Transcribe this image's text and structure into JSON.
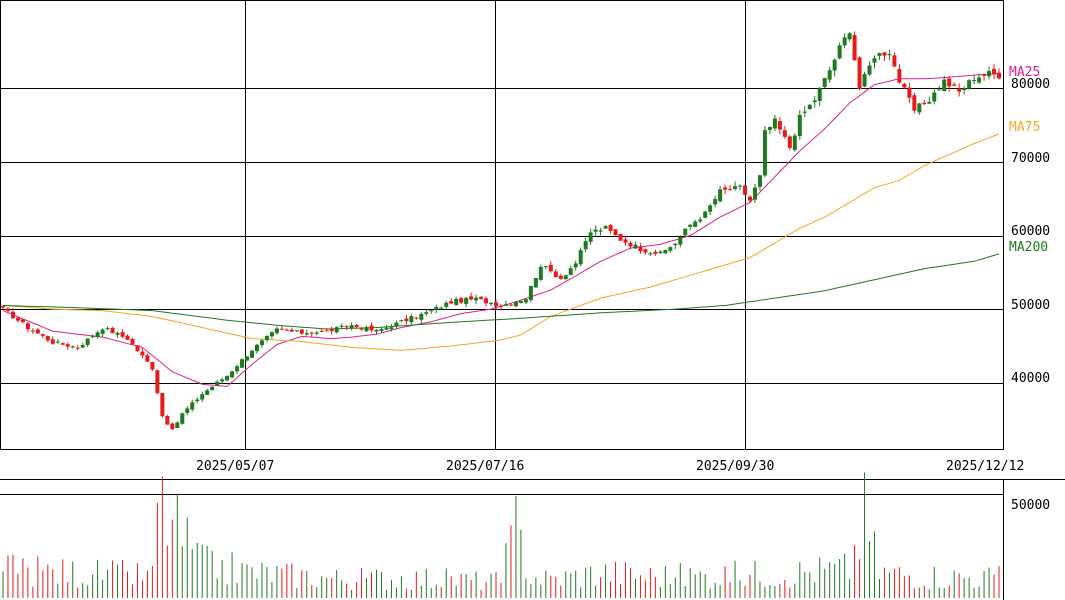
{
  "chart_data": {
    "type": "candlestick",
    "price_axis": {
      "ylim": [
        31000,
        92000
      ],
      "ticks": [
        40000,
        50000,
        60000,
        70000,
        80000
      ],
      "tick_labels": [
        "40000",
        "50000",
        "60000",
        "70000",
        "80000"
      ]
    },
    "volume_axis": {
      "ylim": [
        0,
        57000
      ],
      "ticks": [
        50000
      ],
      "tick_labels": [
        "50000"
      ]
    },
    "date_labels": [
      "2025/05/07",
      "2025/07/16",
      "2025/09/30",
      "2025/12/12"
    ],
    "legend": [
      {
        "name": "MA25",
        "color": "#e0208a"
      },
      {
        "name": "MA75",
        "color": "#f5a623"
      },
      {
        "name": "MA200",
        "color": "#1f7a1f"
      }
    ],
    "colors": {
      "up": "#1f7a1f",
      "down": "#e8191a",
      "grid": "#000000"
    },
    "price_waypoints": [
      [
        0,
        50000
      ],
      [
        5,
        47500
      ],
      [
        10,
        45500
      ],
      [
        15,
        44800
      ],
      [
        20,
        47500
      ],
      [
        25,
        46000
      ],
      [
        30,
        42000
      ],
      [
        32,
        35500
      ],
      [
        34,
        33500
      ],
      [
        36,
        35800
      ],
      [
        40,
        38500
      ],
      [
        45,
        41000
      ],
      [
        50,
        44500
      ],
      [
        55,
        47200
      ],
      [
        60,
        46800
      ],
      [
        65,
        47000
      ],
      [
        70,
        47800
      ],
      [
        75,
        47000
      ],
      [
        80,
        48300
      ],
      [
        85,
        49500
      ],
      [
        90,
        51000
      ],
      [
        95,
        51400
      ],
      [
        100,
        50500
      ],
      [
        105,
        51500
      ],
      [
        108,
        56000
      ],
      [
        112,
        54200
      ],
      [
        115,
        56300
      ],
      [
        118,
        60500
      ],
      [
        121,
        61000
      ],
      [
        124,
        59500
      ],
      [
        128,
        58200
      ],
      [
        132,
        57500
      ],
      [
        135,
        59000
      ],
      [
        138,
        61500
      ],
      [
        141,
        63000
      ],
      [
        144,
        66000
      ],
      [
        148,
        66500
      ],
      [
        150,
        64800
      ],
      [
        152,
        68000
      ],
      [
        153,
        74000
      ],
      [
        155,
        75500
      ],
      [
        158,
        72000
      ],
      [
        160,
        76000
      ],
      [
        163,
        78500
      ],
      [
        166,
        82500
      ],
      [
        168,
        85500
      ],
      [
        170,
        88000
      ],
      [
        172,
        80000
      ],
      [
        175,
        84500
      ],
      [
        178,
        85000
      ],
      [
        180,
        81000
      ],
      [
        183,
        77000
      ],
      [
        186,
        78500
      ],
      [
        189,
        81000
      ],
      [
        192,
        79500
      ],
      [
        195,
        81500
      ],
      [
        198,
        82000
      ],
      [
        200,
        81800
      ]
    ],
    "volume_waypoints": [
      [
        0,
        15000
      ],
      [
        10,
        14000
      ],
      [
        20,
        13000
      ],
      [
        30,
        12000
      ],
      [
        31,
        52000
      ],
      [
        34,
        40000
      ],
      [
        40,
        18000
      ],
      [
        50,
        14000
      ],
      [
        60,
        12000
      ],
      [
        70,
        10000
      ],
      [
        80,
        11000
      ],
      [
        90,
        10000
      ],
      [
        100,
        9000
      ],
      [
        103,
        38000
      ],
      [
        106,
        12000
      ],
      [
        110,
        10000
      ],
      [
        115,
        12000
      ],
      [
        120,
        14000
      ],
      [
        130,
        12000
      ],
      [
        140,
        12000
      ],
      [
        150,
        13000
      ],
      [
        160,
        14000
      ],
      [
        170,
        16000
      ],
      [
        173,
        44000
      ],
      [
        176,
        14000
      ],
      [
        185,
        12000
      ],
      [
        200,
        11000
      ]
    ],
    "ma_curves": {
      "MA25": [
        [
          0,
          49800
        ],
        [
          10,
          47000
        ],
        [
          20,
          46200
        ],
        [
          28,
          44800
        ],
        [
          34,
          41500
        ],
        [
          40,
          39800
        ],
        [
          45,
          39500
        ],
        [
          50,
          42500
        ],
        [
          55,
          45200
        ],
        [
          60,
          46300
        ],
        [
          66,
          46000
        ],
        [
          70,
          46200
        ],
        [
          75,
          46600
        ],
        [
          80,
          47500
        ],
        [
          86,
          48300
        ],
        [
          92,
          49400
        ],
        [
          98,
          50000
        ],
        [
          103,
          51000
        ],
        [
          110,
          52600
        ],
        [
          115,
          54500
        ],
        [
          120,
          56500
        ],
        [
          126,
          58300
        ],
        [
          132,
          58800
        ],
        [
          138,
          60000
        ],
        [
          144,
          62500
        ],
        [
          150,
          64500
        ],
        [
          155,
          68000
        ],
        [
          160,
          71500
        ],
        [
          165,
          74500
        ],
        [
          170,
          78000
        ],
        [
          175,
          80500
        ],
        [
          180,
          81300
        ],
        [
          185,
          81300
        ],
        [
          190,
          81500
        ],
        [
          195,
          81800
        ],
        [
          200,
          82000
        ]
      ],
      "MA75": [
        [
          0,
          50500
        ],
        [
          10,
          50000
        ],
        [
          20,
          49800
        ],
        [
          30,
          49000
        ],
        [
          40,
          47500
        ],
        [
          50,
          46000
        ],
        [
          60,
          45600
        ],
        [
          70,
          44800
        ],
        [
          80,
          44400
        ],
        [
          90,
          45000
        ],
        [
          100,
          45800
        ],
        [
          104,
          46500
        ],
        [
          110,
          49000
        ],
        [
          120,
          51500
        ],
        [
          130,
          53000
        ],
        [
          140,
          55000
        ],
        [
          150,
          57000
        ],
        [
          155,
          59000
        ],
        [
          160,
          61000
        ],
        [
          165,
          62500
        ],
        [
          170,
          64500
        ],
        [
          175,
          66500
        ],
        [
          180,
          67500
        ],
        [
          185,
          69500
        ],
        [
          190,
          71000
        ],
        [
          195,
          72500
        ],
        [
          200,
          73800
        ]
      ],
      "MA200": [
        [
          0,
          50500
        ],
        [
          15,
          50200
        ],
        [
          30,
          49800
        ],
        [
          45,
          48500
        ],
        [
          55,
          47800
        ],
        [
          65,
          47300
        ],
        [
          75,
          47500
        ],
        [
          90,
          48200
        ],
        [
          105,
          48800
        ],
        [
          120,
          49500
        ],
        [
          135,
          50000
        ],
        [
          145,
          50500
        ],
        [
          155,
          51500
        ],
        [
          165,
          52500
        ],
        [
          175,
          54000
        ],
        [
          185,
          55500
        ],
        [
          195,
          56500
        ],
        [
          200,
          57500
        ]
      ]
    }
  }
}
